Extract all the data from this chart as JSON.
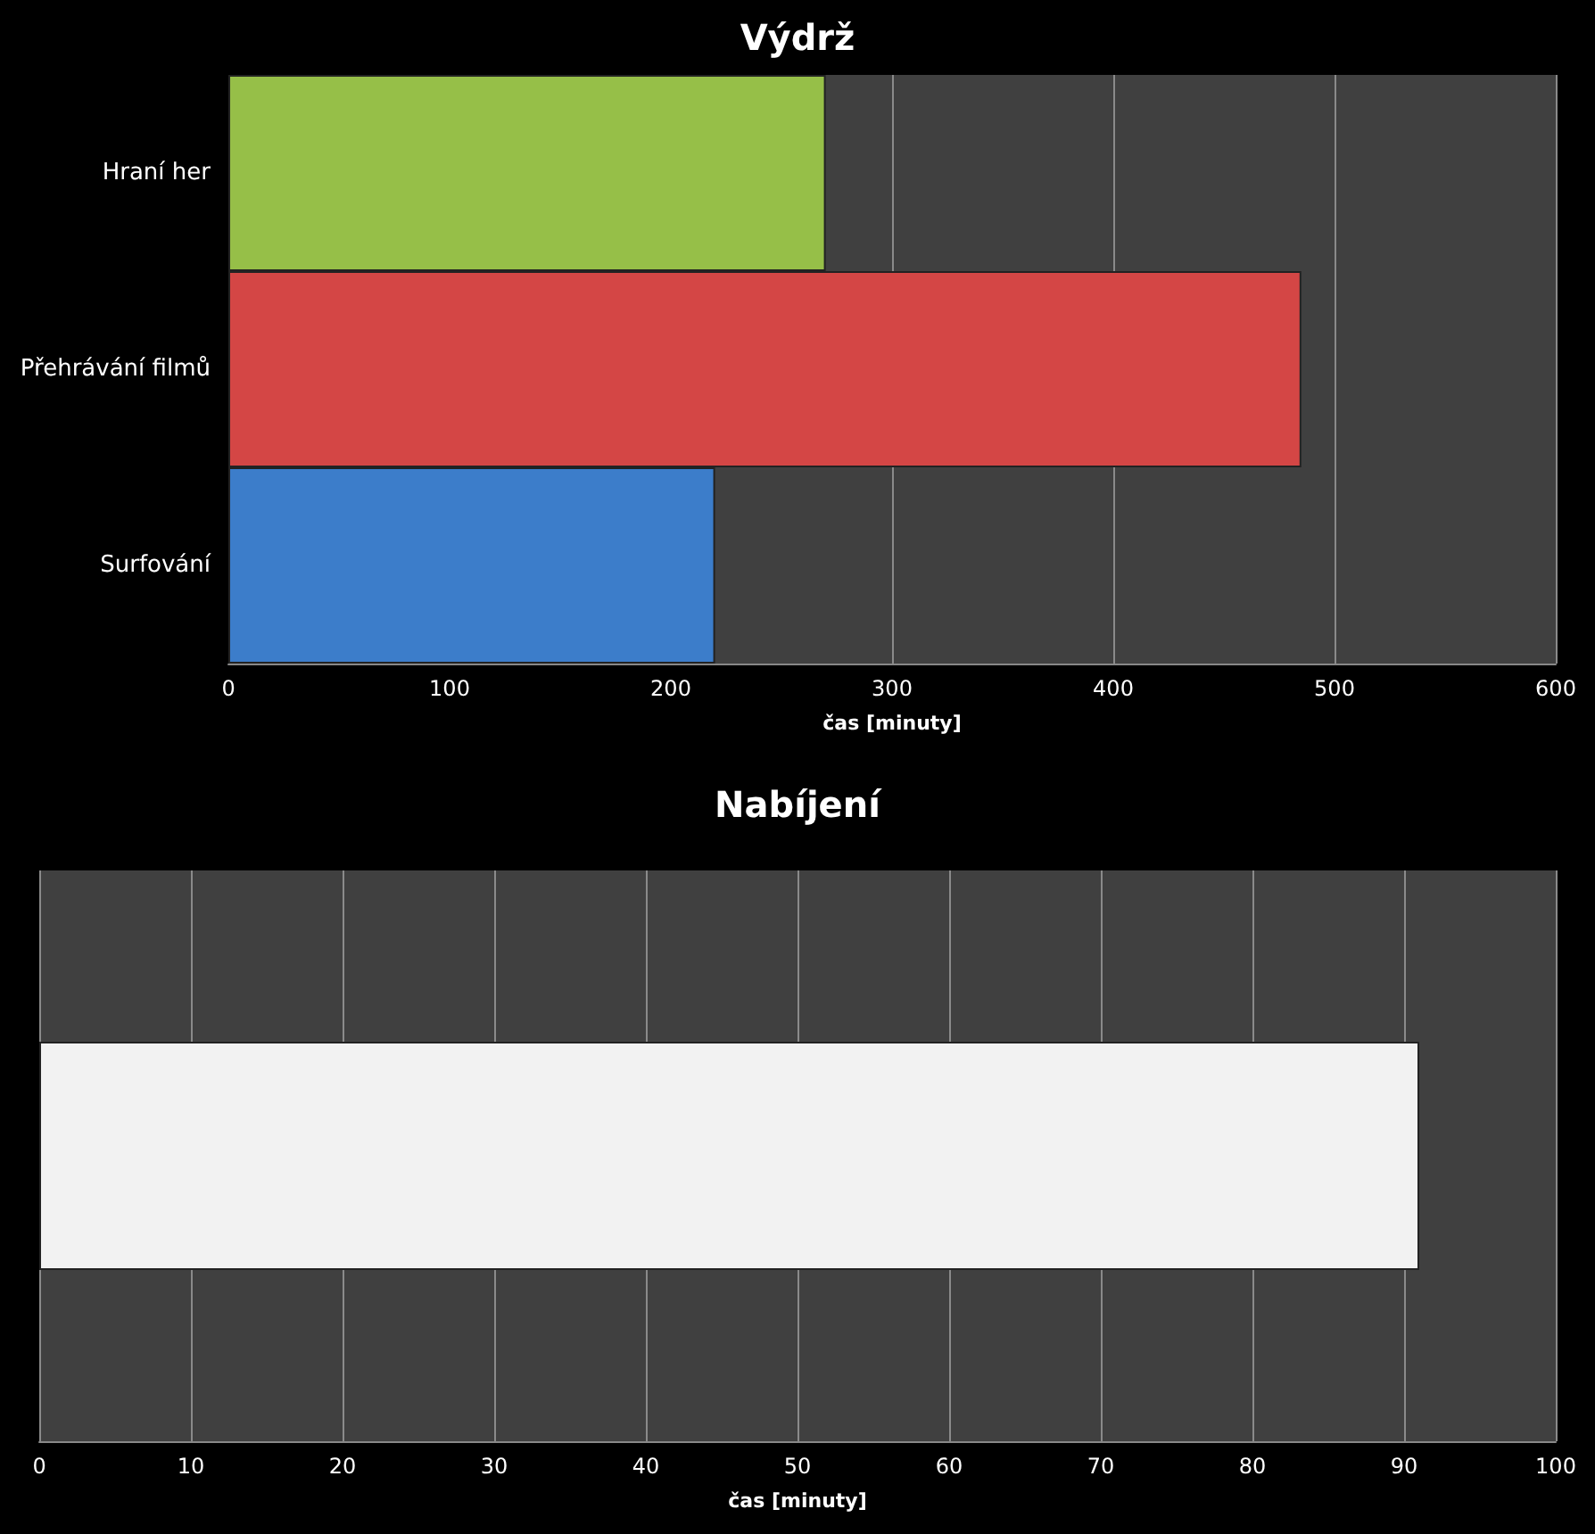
{
  "chart_data": [
    {
      "type": "bar",
      "orientation": "horizontal",
      "title": "Výdrž",
      "xlabel": "čas [minuty]",
      "categories": [
        "Hraní her",
        "Přehrávání filmů",
        "Surfování"
      ],
      "values": [
        270,
        485,
        220
      ],
      "colors": [
        "#96bf48",
        "#d44645",
        "#3c7dca"
      ],
      "xlim": [
        0,
        600
      ],
      "xticks": [
        0,
        100,
        200,
        300,
        400,
        500,
        600
      ],
      "grid": "x"
    },
    {
      "type": "bar",
      "orientation": "horizontal",
      "title": "Nabíjení",
      "xlabel": "čas [minuty]",
      "categories": [
        null
      ],
      "values": [
        91
      ],
      "colors": [
        "#f2f2f2"
      ],
      "xlim": [
        0,
        100
      ],
      "xticks": [
        0,
        10,
        20,
        30,
        40,
        50,
        60,
        70,
        80,
        90,
        100
      ],
      "grid": "x"
    }
  ]
}
